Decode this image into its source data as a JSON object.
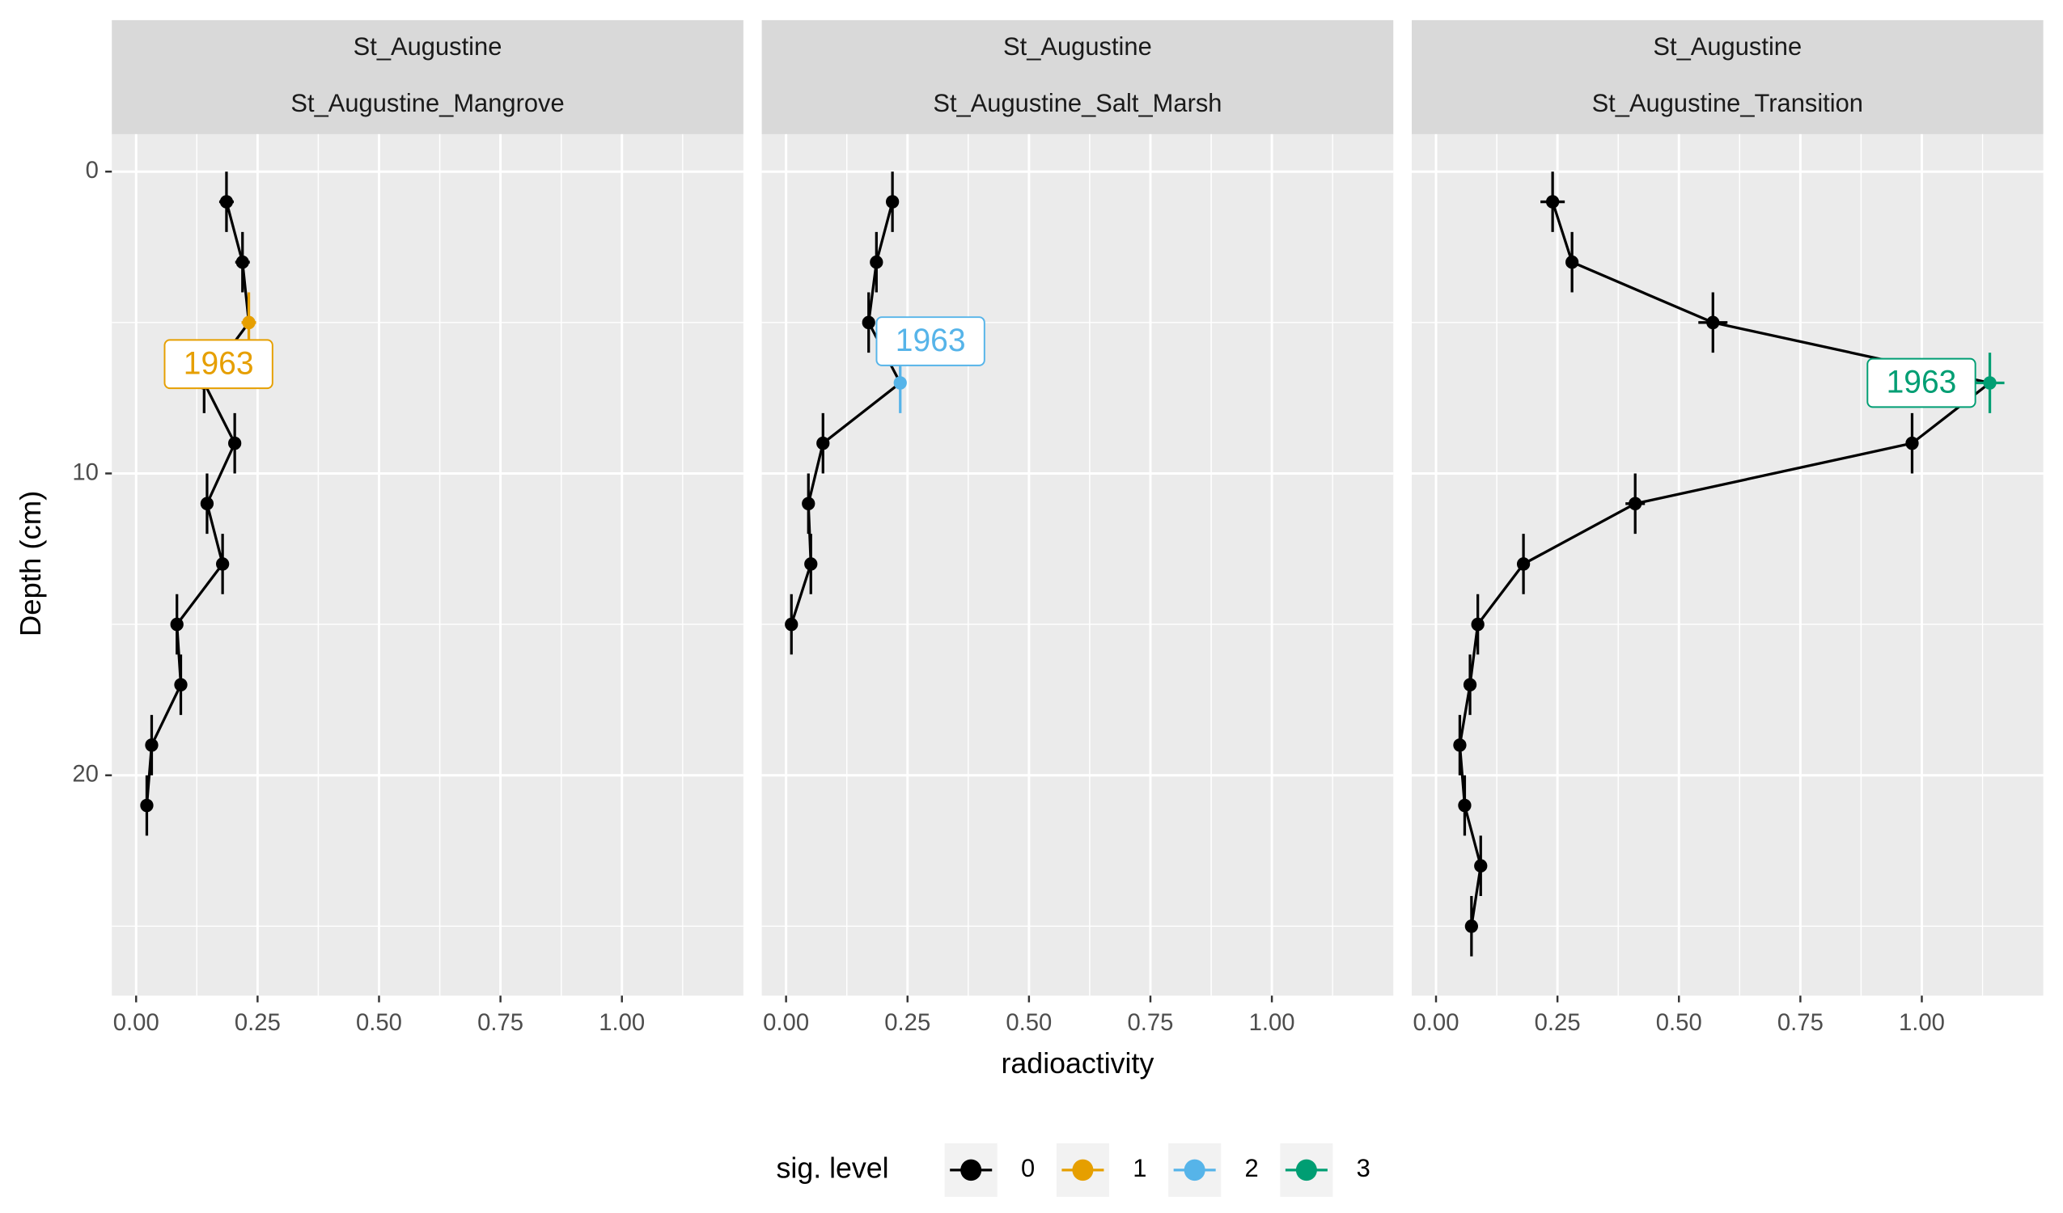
{
  "chart_data": [
    {
      "type": "line",
      "strip": [
        "St_Augustine",
        "St_Augustine_Mangrove"
      ],
      "annotation": "1963",
      "xlim": [
        -0.05,
        1.25
      ],
      "xticks": [
        {
          "value": 0,
          "label": "0.00"
        },
        {
          "value": 0.25,
          "label": "0.25"
        },
        {
          "value": 0.5,
          "label": "0.50"
        },
        {
          "value": 0.75,
          "label": "0.75"
        },
        {
          "value": 1,
          "label": "1.00"
        }
      ],
      "ylim": [
        -1.24,
        27.3
      ],
      "y_reversed": true,
      "yticks": [
        0,
        10,
        20
      ],
      "grid": true,
      "series": [
        {
          "values": [
            0.186,
            0.219,
            0.232,
            0.14,
            0.203,
            0.146,
            0.178,
            0.084,
            0.092,
            0.032,
            0.022
          ],
          "depths": [
            1,
            3,
            5,
            7,
            9,
            11,
            13,
            15,
            17,
            19,
            21
          ],
          "x_err": [
            0.015,
            0.015,
            0.015,
            0.01,
            0.01,
            0.01,
            0.01,
            0.01,
            0.01,
            0.01,
            0.01
          ],
          "y_err": [
            1,
            1,
            1,
            1,
            1,
            1,
            1,
            1,
            1,
            1,
            1
          ],
          "sig_level": [
            0,
            0,
            1,
            0,
            0,
            0,
            0,
            0,
            0,
            0,
            0
          ]
        }
      ]
    },
    {
      "type": "line",
      "strip": [
        "St_Augustine",
        "St_Augustine_Salt_Marsh"
      ],
      "annotation": "1963",
      "xlim": [
        -0.05,
        1.25
      ],
      "xticks": [
        {
          "value": 0,
          "label": "0.00"
        },
        {
          "value": 0.25,
          "label": "0.25"
        },
        {
          "value": 0.5,
          "label": "0.50"
        },
        {
          "value": 0.75,
          "label": "0.75"
        },
        {
          "value": 1,
          "label": "1.00"
        }
      ],
      "ylim": [
        -1.24,
        27.3
      ],
      "y_reversed": true,
      "yticks": [
        0,
        10,
        20
      ],
      "grid": true,
      "series": [
        {
          "values": [
            0.219,
            0.186,
            0.17,
            0.235,
            0.076,
            0.046,
            0.051,
            0.011
          ],
          "depths": [
            1,
            3,
            5,
            7,
            9,
            11,
            13,
            15
          ],
          "x_err": [
            0.01,
            0.01,
            0.01,
            0.01,
            0.01,
            0.01,
            0.01,
            0.01
          ],
          "y_err": [
            1,
            1,
            1,
            1,
            1,
            1,
            1,
            1
          ],
          "sig_level": [
            0,
            0,
            0,
            2,
            0,
            0,
            0,
            0
          ]
        }
      ]
    },
    {
      "type": "line",
      "strip": [
        "St_Augustine",
        "St_Augustine_Transition"
      ],
      "annotation": "1963",
      "xlim": [
        -0.05,
        1.25
      ],
      "xticks": [
        {
          "value": 0,
          "label": "0.00"
        },
        {
          "value": 0.25,
          "label": "0.25"
        },
        {
          "value": 0.5,
          "label": "0.50"
        },
        {
          "value": 0.75,
          "label": "0.75"
        },
        {
          "value": 1,
          "label": "1.00"
        }
      ],
      "ylim": [
        -1.24,
        27.3
      ],
      "y_reversed": true,
      "yticks": [
        0,
        10,
        20
      ],
      "grid": true,
      "series": [
        {
          "values": [
            0.24,
            0.28,
            0.57,
            1.14,
            0.98,
            0.41,
            0.18,
            0.086,
            0.07,
            0.049,
            0.059,
            0.092,
            0.073
          ],
          "depths": [
            1,
            3,
            5,
            7,
            9,
            11,
            13,
            15,
            17,
            19,
            21,
            23,
            25
          ],
          "x_err": [
            0.025,
            0.01,
            0.03,
            0.03,
            0.01,
            0.02,
            0.01,
            0.01,
            0.01,
            0.01,
            0.01,
            0.01,
            0.01
          ],
          "y_err": [
            1,
            1,
            1,
            1,
            1,
            1,
            1,
            1,
            1,
            1,
            1,
            1,
            1
          ],
          "sig_level": [
            0,
            0,
            0,
            3,
            0,
            0,
            0,
            0,
            0,
            0,
            0,
            0,
            0
          ]
        }
      ]
    }
  ],
  "axis_labels": {
    "x": "radioactivity",
    "y": "Depth (cm)"
  },
  "legend": {
    "title": "sig. level",
    "entries": [
      {
        "label": "0",
        "color": "#000000"
      },
      {
        "label": "1",
        "color": "#E69F00"
      },
      {
        "label": "2",
        "color": "#56B4E9"
      },
      {
        "label": "3",
        "color": "#009E73"
      }
    ]
  }
}
